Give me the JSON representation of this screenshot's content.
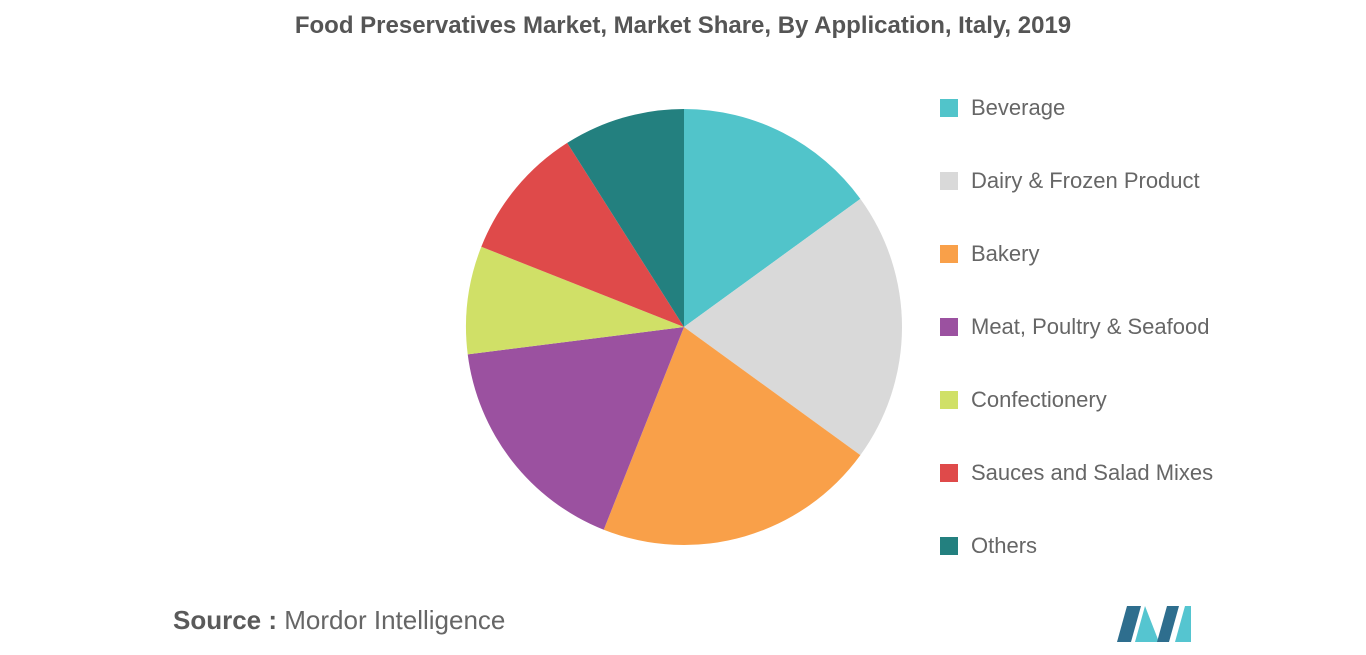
{
  "chart_data": {
    "type": "pie",
    "title": "Food Preservatives Market, Market Share, By Application, Italy, 2019",
    "categories": [
      "Beverage",
      "Dairy & Frozen Product",
      "Bakery",
      "Meat, Poultry & Seafood",
      "Confectionery",
      "Sauces and Salad Mixes",
      "Others"
    ],
    "values": [
      15,
      20,
      21,
      17,
      8,
      10,
      9
    ],
    "colors": [
      "#51C4CA",
      "#D9D9D9",
      "#F9A049",
      "#9B51A0",
      "#D0E067",
      "#DF4A4A",
      "#23807F"
    ],
    "legend_position": "right"
  },
  "source": {
    "prefix": "Source :",
    "name": "Mordor Intelligence"
  },
  "logo": {
    "icon": "mordor-intelligence-logo",
    "colors": [
      "#2E6E8E",
      "#55C5D0"
    ]
  }
}
